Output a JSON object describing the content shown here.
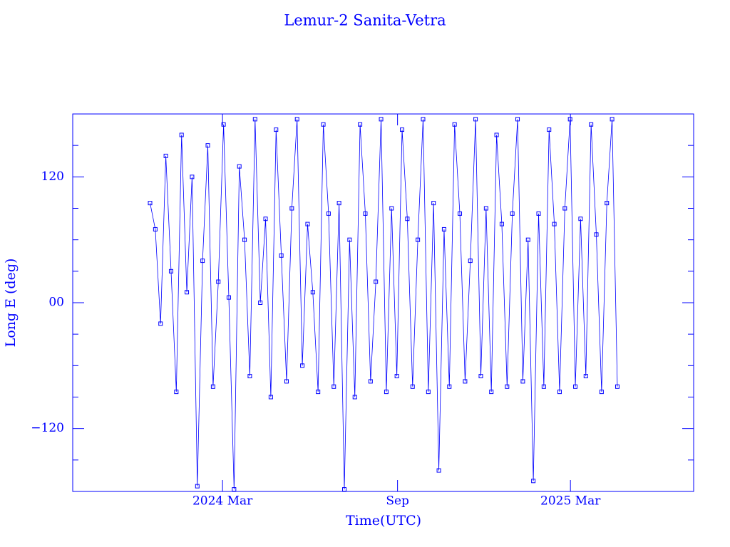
{
  "chart_data": {
    "type": "line",
    "title": "Lemur-2 Sanita-Vetra",
    "xlabel": "Time(UTC)",
    "ylabel": "Long E (deg)",
    "xlim": [
      2023.739,
      2025.513
    ],
    "xticks": [
      {
        "value": 2024.167,
        "label": "2024 Mar"
      },
      {
        "value": 2024.667,
        "label": "Sep"
      },
      {
        "value": 2025.161,
        "label": "2025 Mar"
      }
    ],
    "ylim": [
      -180,
      180
    ],
    "yticks": [
      {
        "value": -120,
        "label": "−120"
      },
      {
        "value": 0,
        "label": "00"
      },
      120
    ],
    "yminor": [
      -150,
      -90,
      -60,
      -30,
      30,
      60,
      90,
      150
    ],
    "series": [
      {
        "color": "#0000ff",
        "x": [
          2023.96,
          2023.975,
          2023.99,
          2024.005,
          2024.02,
          2024.035,
          2024.05,
          2024.065,
          2024.08,
          2024.095,
          2024.11,
          2024.125,
          2024.14,
          2024.155,
          2024.17,
          2024.185,
          2024.2,
          2024.215,
          2024.23,
          2024.245,
          2024.26,
          2024.275,
          2024.29,
          2024.305,
          2024.32,
          2024.335,
          2024.35,
          2024.365,
          2024.38,
          2024.395,
          2024.41,
          2024.425,
          2024.44,
          2024.455,
          2024.47,
          2024.485,
          2024.5,
          2024.515,
          2024.53,
          2024.545,
          2024.56,
          2024.575,
          2024.59,
          2024.605,
          2024.62,
          2024.635,
          2024.65,
          2024.665,
          2024.68,
          2024.695,
          2024.71,
          2024.725,
          2024.74,
          2024.755,
          2024.77,
          2024.785,
          2024.8,
          2024.815,
          2024.83,
          2024.845,
          2024.86,
          2024.875,
          2024.89,
          2024.905,
          2024.92,
          2024.935,
          2024.95,
          2024.965,
          2024.98,
          2024.995,
          2025.01,
          2025.025,
          2025.04,
          2025.055,
          2025.07,
          2025.085,
          2025.1,
          2025.115,
          2025.13,
          2025.145,
          2025.16,
          2025.175,
          2025.19,
          2025.205,
          2025.22,
          2025.235,
          2025.25,
          2025.265,
          2025.28,
          2025.295
        ],
        "values": [
          95,
          70,
          -20,
          140,
          30,
          -85,
          160,
          10,
          120,
          -175,
          40,
          150,
          -80,
          20,
          170,
          5,
          -178,
          130,
          60,
          -70,
          175,
          0,
          80,
          -90,
          165,
          45,
          -75,
          90,
          175,
          -60,
          75,
          10,
          -85,
          170,
          85,
          -80,
          95,
          -178,
          60,
          -90,
          170,
          85,
          -75,
          20,
          175,
          -85,
          90,
          -70,
          165,
          80,
          -80,
          60,
          175,
          -85,
          95,
          -160,
          70,
          -80,
          170,
          85,
          -75,
          40,
          175,
          -70,
          90,
          -85,
          160,
          75,
          -80,
          85,
          175,
          -75,
          60,
          -170,
          85,
          -80,
          165,
          75,
          -85,
          90,
          175,
          -80,
          80,
          -70,
          170,
          65,
          -85,
          95,
          175,
          -80
        ]
      }
    ]
  }
}
